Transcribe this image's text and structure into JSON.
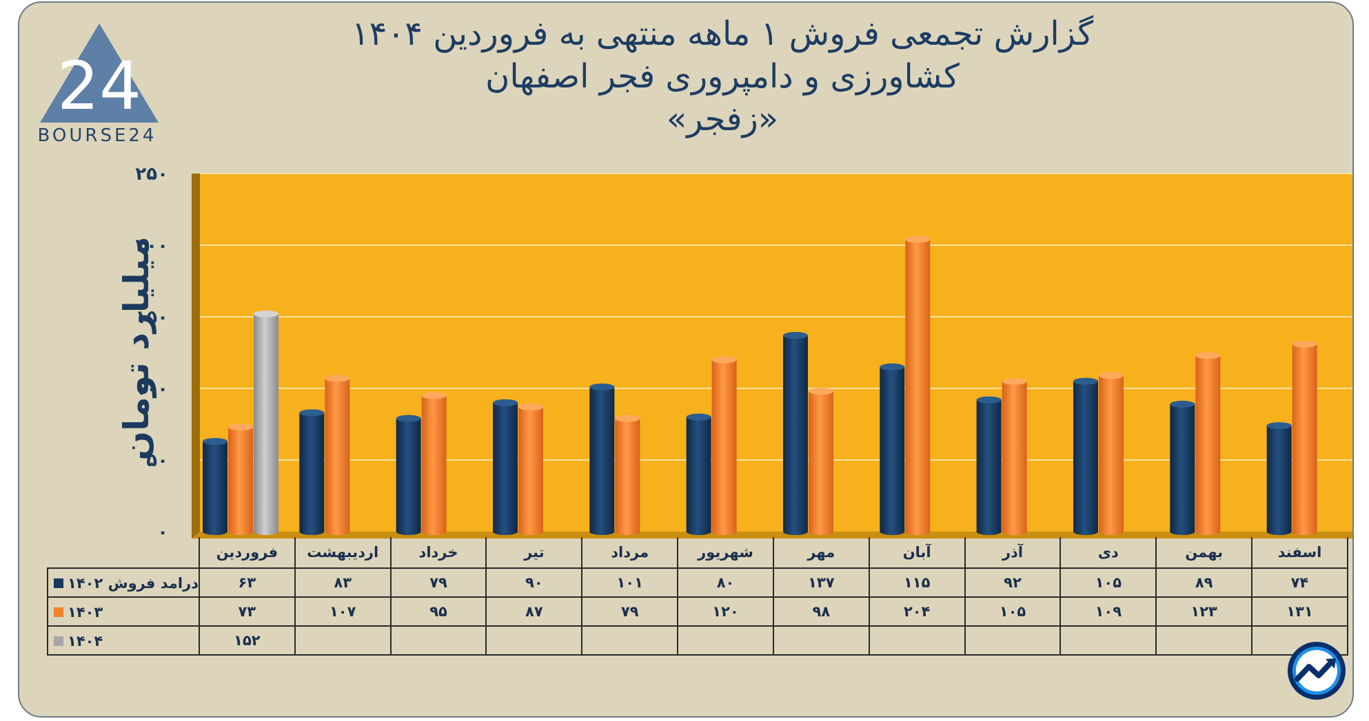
{
  "title": {
    "line1": "گزارش تجمعی فروش ۱ ماهه منتهی به فروردین ۱۴۰۴",
    "line2": "کشاورزی و دامپروری فجر اصفهان",
    "line3": "«زفجر»"
  },
  "logo": {
    "text": "BOURSE24",
    "mark": "24"
  },
  "chart_data": {
    "type": "bar",
    "ylabel": "میلیارد تومان",
    "ylim": [
      0,
      250
    ],
    "yticks": [
      0,
      50,
      100,
      150,
      200,
      250
    ],
    "ytick_labels": [
      "۰",
      "۵۰",
      "۱۰۰",
      "۱۵۰",
      "۲۰۰",
      "۲۵۰"
    ],
    "categories": [
      "فروردین",
      "اردیبهشت",
      "خرداد",
      "تیر",
      "مرداد",
      "شهریور",
      "مهر",
      "آبان",
      "آذر",
      "دی",
      "بهمن",
      "اسفند"
    ],
    "series": [
      {
        "name": "درامد فروش ۱۴۰۲",
        "color": "#17375e",
        "values": [
          63,
          83,
          79,
          90,
          101,
          80,
          137,
          115,
          92,
          105,
          89,
          74
        ],
        "labels": [
          "۶۳",
          "۸۳",
          "۷۹",
          "۹۰",
          "۱۰۱",
          "۸۰",
          "۱۳۷",
          "۱۱۵",
          "۹۲",
          "۱۰۵",
          "۸۹",
          "۷۴"
        ]
      },
      {
        "name": "۱۴۰۳",
        "color": "#f4822a",
        "values": [
          73,
          107,
          95,
          87,
          79,
          120,
          98,
          204,
          105,
          109,
          123,
          131
        ],
        "labels": [
          "۷۳",
          "۱۰۷",
          "۹۵",
          "۸۷",
          "۷۹",
          "۱۲۰",
          "۹۸",
          "۲۰۴",
          "۱۰۵",
          "۱۰۹",
          "۱۲۳",
          "۱۳۱"
        ]
      },
      {
        "name": "۱۴۰۴",
        "color": "#a6a6a6",
        "values": [
          152,
          null,
          null,
          null,
          null,
          null,
          null,
          null,
          null,
          null,
          null,
          null
        ],
        "labels": [
          "۱۵۲",
          "",
          "",
          "",
          "",
          "",
          "",
          "",
          "",
          "",
          "",
          ""
        ]
      }
    ],
    "plot_background": "#f7b11c",
    "grid": true,
    "data_table": true
  }
}
